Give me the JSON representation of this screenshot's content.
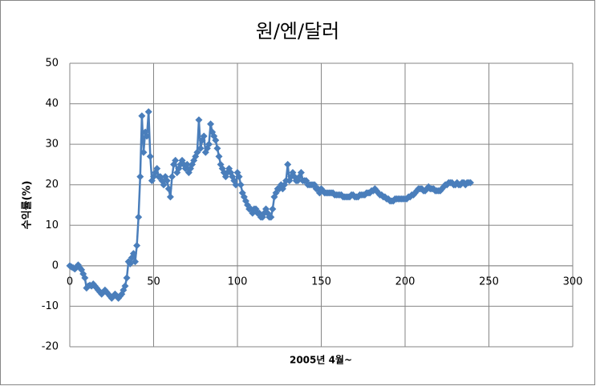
{
  "chart_data": {
    "type": "line",
    "title": "원/엔/달러",
    "xlabel": "2005년 4월~",
    "ylabel": "수익률(%)",
    "color": "#4a7ebb",
    "xlim": [
      0,
      300
    ],
    "xticks": [
      0,
      50,
      100,
      150,
      200,
      250,
      300
    ],
    "ylim": [
      -20,
      50
    ],
    "yticks": [
      -20,
      -10,
      0,
      10,
      20,
      30,
      40,
      50
    ],
    "grid": true,
    "marker": "diamond",
    "x": [
      0,
      1,
      2,
      3,
      4,
      5,
      6,
      7,
      8,
      9,
      10,
      11,
      12,
      13,
      14,
      15,
      16,
      17,
      18,
      19,
      20,
      21,
      22,
      23,
      24,
      25,
      26,
      27,
      28,
      29,
      30,
      31,
      32,
      33,
      34,
      35,
      36,
      37,
      38,
      39,
      40,
      41,
      42,
      43,
      44,
      45,
      46,
      47,
      48,
      49,
      50,
      51,
      52,
      53,
      54,
      55,
      56,
      57,
      58,
      59,
      60,
      61,
      62,
      63,
      64,
      65,
      66,
      67,
      68,
      69,
      70,
      71,
      72,
      73,
      74,
      75,
      76,
      77,
      78,
      79,
      80,
      81,
      82,
      83,
      84,
      85,
      86,
      87,
      88,
      89,
      90,
      91,
      92,
      93,
      94,
      95,
      96,
      97,
      98,
      99,
      100,
      101,
      102,
      103,
      104,
      105,
      106,
      107,
      108,
      109,
      110,
      111,
      112,
      113,
      114,
      115,
      116,
      117,
      118,
      119,
      120,
      121,
      122,
      123,
      124,
      125,
      126,
      127,
      128,
      129,
      130,
      131,
      132,
      133,
      134,
      135,
      136,
      137,
      138,
      139,
      140,
      141,
      142,
      143,
      144,
      145,
      146,
      147,
      148,
      149,
      150,
      151,
      152,
      153,
      154,
      155,
      156,
      157,
      158,
      159,
      160,
      161,
      162,
      163,
      164,
      165,
      166,
      167,
      168,
      169,
      170,
      171,
      172,
      173,
      174,
      175,
      176,
      177,
      178,
      179,
      180,
      181,
      182,
      183,
      184,
      185,
      186,
      187,
      188,
      189,
      190,
      191,
      192,
      193,
      194,
      195,
      196,
      197,
      198,
      199,
      200,
      201,
      202,
      203,
      204,
      205,
      206,
      207,
      208,
      209,
      210,
      211,
      212,
      213,
      214,
      215,
      216,
      217,
      218,
      219,
      220,
      221,
      222,
      223,
      224,
      225,
      226,
      227,
      228,
      229,
      230,
      231,
      232,
      233,
      234,
      235,
      236,
      237,
      238,
      239
    ],
    "values": [
      0,
      -0.3,
      -0.5,
      -0.8,
      -0.4,
      0.2,
      -0.5,
      -1,
      -2,
      -3,
      -5.5,
      -5,
      -4.8,
      -5,
      -4.5,
      -5,
      -5.5,
      -6,
      -6.5,
      -7,
      -6.5,
      -6,
      -6.5,
      -7,
      -7.5,
      -8,
      -7.5,
      -7,
      -7.5,
      -8,
      -7.5,
      -7,
      -6,
      -5,
      -3,
      1,
      0.5,
      2,
      3,
      1,
      5,
      12,
      22,
      37,
      28,
      33,
      32,
      38,
      27,
      21,
      22,
      23,
      24,
      22,
      22,
      21,
      20,
      22,
      21,
      19,
      17,
      22,
      25,
      26,
      23,
      24,
      25,
      26,
      25,
      24,
      25,
      23,
      24,
      25,
      26,
      27,
      28,
      36,
      29,
      31,
      32,
      28,
      29,
      30,
      35,
      33,
      32,
      31,
      29,
      27,
      25,
      24,
      23,
      22,
      23,
      24,
      23,
      22,
      21,
      20,
      23,
      22,
      20,
      18,
      17,
      16,
      15,
      14,
      14,
      13,
      14,
      14,
      13,
      13,
      12,
      12,
      13,
      14,
      13,
      12,
      12,
      14,
      17,
      18,
      19,
      19,
      20,
      19,
      20,
      21,
      25,
      21,
      22,
      23,
      22,
      21,
      21,
      22,
      23,
      21,
      21,
      21,
      20,
      20,
      20,
      20,
      20,
      19,
      19,
      18,
      19,
      18.5,
      18,
      18,
      18,
      18,
      18,
      18,
      17.5,
      17.5,
      17.5,
      17.5,
      17.5,
      17,
      17,
      17,
      17,
      17,
      17.5,
      17.5,
      17,
      17,
      17,
      17.5,
      17.5,
      17.5,
      17.5,
      18,
      18,
      18,
      18.5,
      18.5,
      19,
      18.5,
      18,
      17.5,
      17.5,
      17,
      17,
      16.5,
      16.5,
      16,
      16,
      16,
      16.5,
      16.5,
      16.5,
      16.5,
      16.5,
      16.5,
      16.5,
      16.5,
      17,
      17,
      17.5,
      17.5,
      18,
      18.5,
      19,
      19,
      19,
      18.5,
      18.5,
      19,
      19.5,
      19,
      19,
      19,
      18.5,
      18.5,
      18.5,
      18.5,
      19,
      19.5,
      20,
      20,
      20.5,
      20.5,
      20.5,
      20,
      20,
      20.5,
      20,
      20,
      20.5,
      20.5,
      20,
      20.5,
      20.5,
      20.5
    ]
  }
}
